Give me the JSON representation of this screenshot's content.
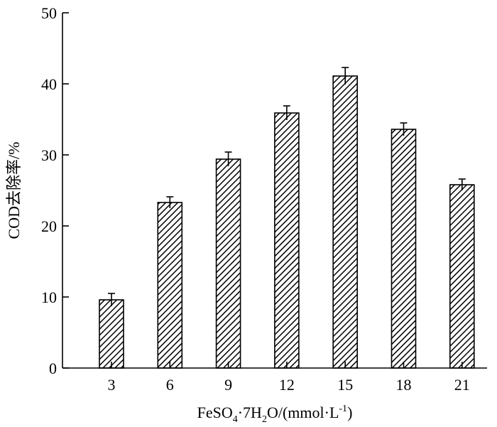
{
  "chart_data": {
    "type": "bar",
    "title": "",
    "xlabel_parts": {
      "p1": "FeSO",
      "p2": "4",
      "p3": "·7H",
      "p4": "2",
      "p5": "O/(mmol·L",
      "p6": "-1",
      "p7": ")"
    },
    "ylabel": "COD去除率/%",
    "categories": [
      "3",
      "6",
      "9",
      "12",
      "15",
      "18",
      "21"
    ],
    "values": [
      9.6,
      23.3,
      29.4,
      35.9,
      41.1,
      33.6,
      25.8
    ],
    "errors": [
      0.9,
      0.8,
      1.0,
      1.0,
      1.2,
      0.9,
      0.8
    ],
    "ylim": [
      0,
      50
    ],
    "yticks": [
      0,
      10,
      20,
      30,
      40,
      50
    ],
    "grid": false,
    "fill_pattern": "diagonal-hatch",
    "bar_color": "#000000",
    "background": "#ffffff"
  }
}
